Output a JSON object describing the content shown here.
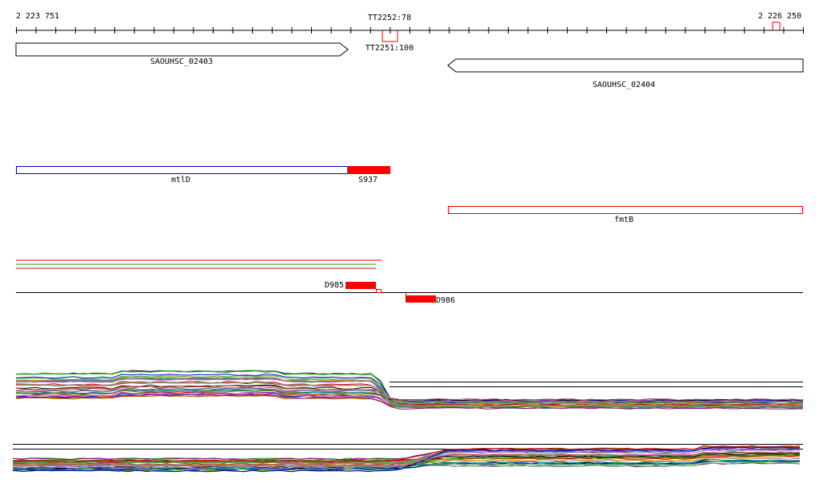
{
  "ruler": {
    "start": "2 223 751",
    "end": "2 226 250"
  },
  "terminators": [
    "TT2252:78",
    "TT2251:100"
  ],
  "genes": [
    "SAOUHSC_02403",
    "SAOUHSC_02404"
  ],
  "operons": [
    "mtlD",
    "fmtB"
  ],
  "segments": [
    "S937",
    "D985",
    "D986"
  ]
}
